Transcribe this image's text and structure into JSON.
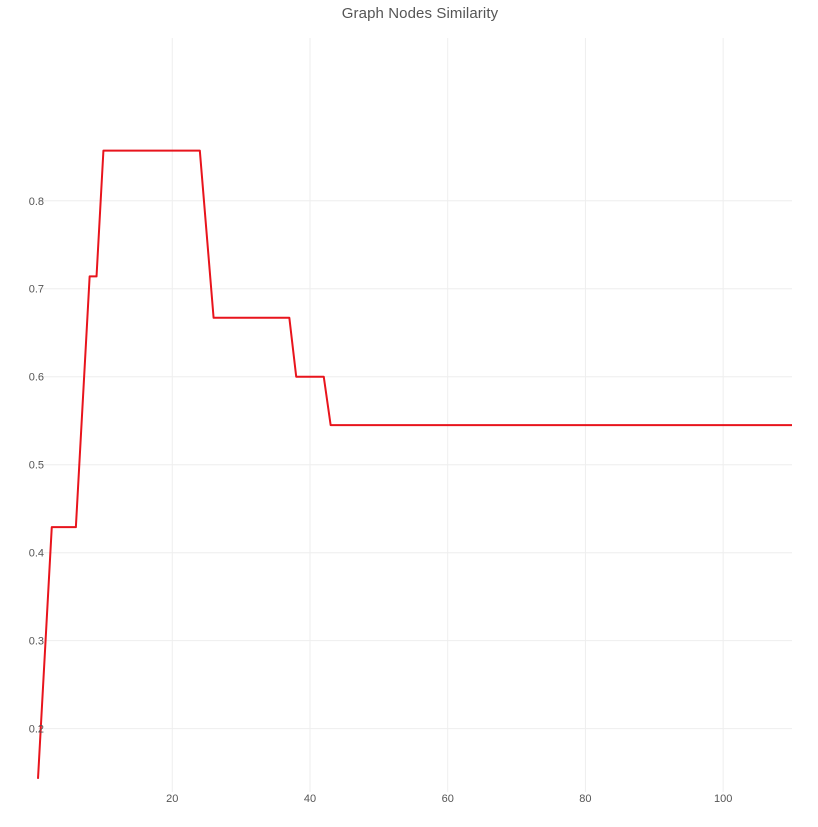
{
  "chart_data": {
    "type": "line",
    "title": "Graph Nodes Similarity",
    "xlabel": "",
    "ylabel": "",
    "xlim": [
      0.5,
      110
    ],
    "ylim": [
      0.128,
      0.985
    ],
    "grid": true,
    "legend": "none",
    "x_ticks": [
      20,
      40,
      60,
      80,
      100
    ],
    "y_ticks": [
      0.2,
      0.3,
      0.4,
      0.5,
      0.6,
      0.7,
      0.8
    ],
    "series": [
      {
        "color": "#e8141c",
        "x": [
          0.5,
          2.5,
          6,
          8,
          9,
          10,
          24,
          26,
          37,
          38,
          42,
          43,
          110
        ],
        "y": [
          0.143,
          0.429,
          0.429,
          0.714,
          0.714,
          0.857,
          0.857,
          0.667,
          0.667,
          0.6,
          0.6,
          0.545,
          0.545
        ]
      }
    ]
  },
  "colors": {
    "grid": "#eeeeee",
    "text": "#555555",
    "line": "#e8141c"
  }
}
